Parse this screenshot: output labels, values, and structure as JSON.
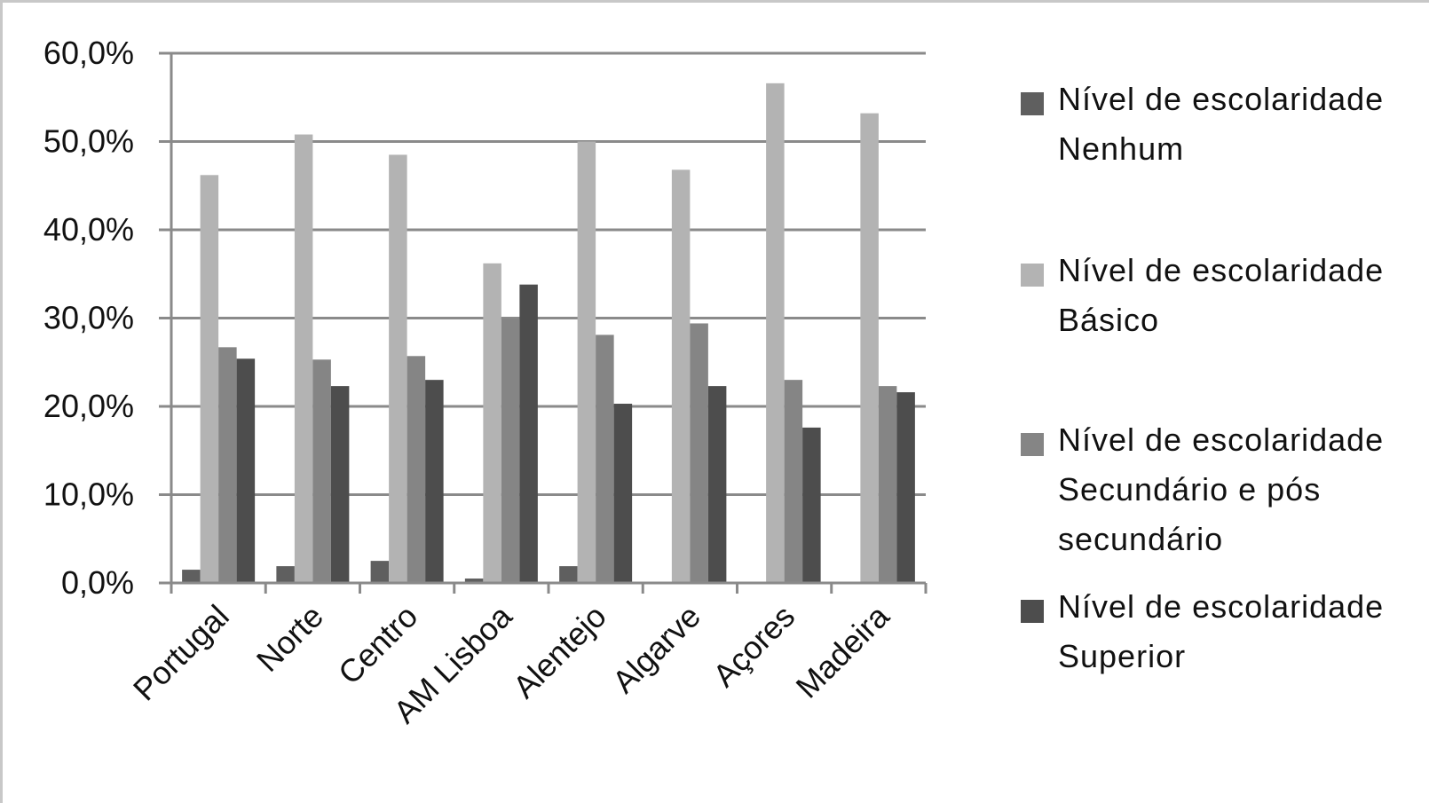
{
  "chart_data": {
    "type": "bar",
    "categories": [
      "Portugal",
      "Norte",
      "Centro",
      "AM Lisboa",
      "Alentejo",
      "Algarve",
      "Açores",
      "Madeira"
    ],
    "series": [
      {
        "name": "Nível de escolaridade Nenhum",
        "color": "#5f5f5f",
        "values": [
          1.5,
          1.9,
          2.5,
          0.5,
          1.9,
          0.0,
          0.0,
          0.0
        ]
      },
      {
        "name": "Nível de escolaridade Básico",
        "color": "#b3b3b3",
        "values": [
          46.2,
          50.8,
          48.5,
          36.2,
          50.0,
          46.8,
          56.6,
          53.2
        ]
      },
      {
        "name": "Nível de escolaridade Secundário e pós secundário",
        "color": "#858585",
        "values": [
          26.7,
          25.3,
          25.7,
          30.0,
          28.1,
          29.4,
          23.0,
          22.3
        ]
      },
      {
        "name": "Nível de escolaridade Superior",
        "color": "#4d4d4d",
        "values": [
          25.4,
          22.3,
          23.0,
          33.8,
          20.3,
          22.3,
          17.6,
          21.6
        ]
      }
    ],
    "yticks": [
      "0,0%",
      "10,0%",
      "20,0%",
      "30,0%",
      "40,0%",
      "50,0%",
      "60,0%"
    ],
    "ylim": [
      0,
      60
    ],
    "grid": true,
    "legend_position": "right"
  },
  "legend_items": [
    {
      "line1": "Nível de escolaridade",
      "line2": "Nenhum",
      "line3": ""
    },
    {
      "line1": "Nível de escolaridade",
      "line2": "Básico",
      "line3": ""
    },
    {
      "line1": "Nível de escolaridade",
      "line2": "Secundário e pós",
      "line3": "secundário"
    },
    {
      "line1": "Nível de escolaridade",
      "line2": "Superior",
      "line3": ""
    }
  ]
}
